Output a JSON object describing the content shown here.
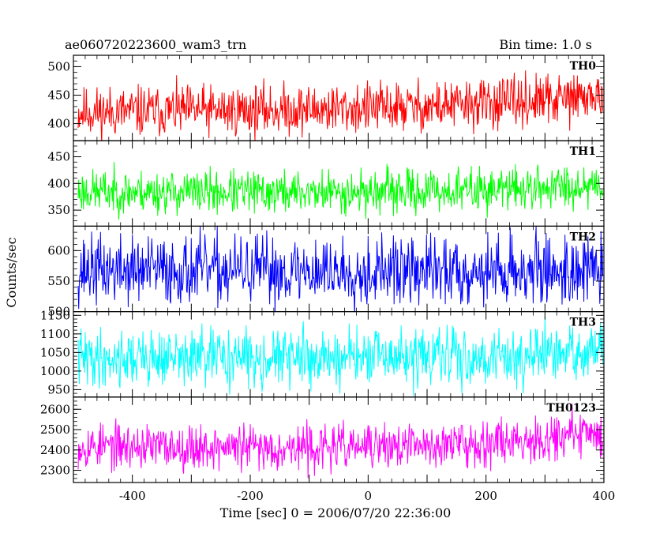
{
  "header": {
    "title": "ae060720223600_wam3_trn",
    "bin_time": "Bin time: 1.0 s"
  },
  "chart_data": {
    "type": "line",
    "xlabel": "Time [sec] 0 = 2006/07/20 22:36:00",
    "ylabel": "Counts/sec",
    "xlim": [
      -500,
      400
    ],
    "x_ticks": [
      -400,
      -200,
      0,
      200,
      400
    ],
    "x_step": 1,
    "panels": [
      {
        "name": "TH0",
        "color": "#ff0000",
        "ylim": [
          370,
          520
        ],
        "yticks": [
          400,
          450,
          500
        ],
        "trend": [
          [
            -500,
            420
          ],
          [
            -100,
            425
          ],
          [
            100,
            430
          ],
          [
            300,
            440
          ],
          [
            400,
            450
          ]
        ],
        "noise": 22,
        "seed": 11
      },
      {
        "name": "TH1",
        "color": "#00ff00",
        "ylim": [
          320,
          480
        ],
        "yticks": [
          350,
          400,
          450
        ],
        "trend": [
          [
            -500,
            385
          ],
          [
            -200,
            383
          ],
          [
            100,
            385
          ],
          [
            300,
            392
          ],
          [
            400,
            400
          ]
        ],
        "noise": 20,
        "seed": 23
      },
      {
        "name": "TH2",
        "color": "#0000ff",
        "ylim": [
          500,
          640
        ],
        "yticks": [
          500,
          550,
          600
        ],
        "trend": [
          [
            -500,
            568
          ],
          [
            0,
            566
          ],
          [
            400,
            568
          ]
        ],
        "noise": 28,
        "seed": 37
      },
      {
        "name": "TH3",
        "color": "#00ffff",
        "ylim": [
          930,
          1160
        ],
        "yticks": [
          950,
          1000,
          1050,
          1100,
          1150
        ],
        "trend": [
          [
            -500,
            1035
          ],
          [
            0,
            1035
          ],
          [
            300,
            1040
          ],
          [
            400,
            1055
          ]
        ],
        "noise": 38,
        "seed": 41
      },
      {
        "name": "TH0123",
        "color": "#ff00ff",
        "ylim": [
          2240,
          2660
        ],
        "yticks": [
          2300,
          2400,
          2500,
          2600
        ],
        "trend": [
          [
            -500,
            2420
          ],
          [
            -100,
            2410
          ],
          [
            100,
            2420
          ],
          [
            300,
            2460
          ],
          [
            400,
            2490
          ]
        ],
        "noise": 55,
        "seed": 53
      }
    ]
  }
}
